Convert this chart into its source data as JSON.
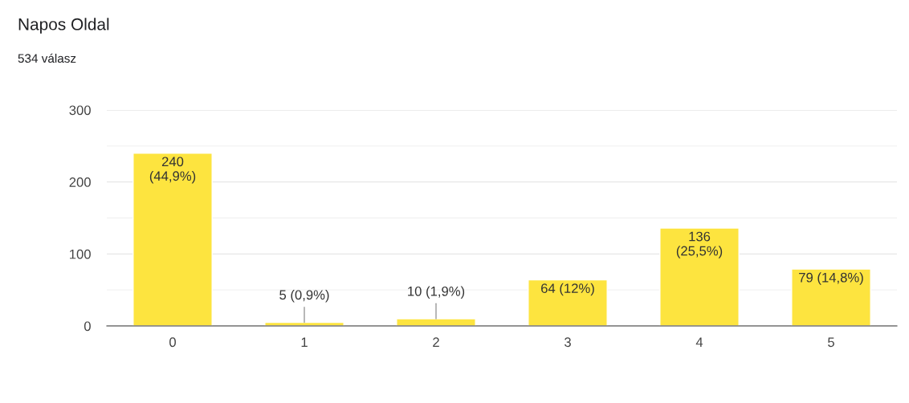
{
  "chart_data": {
    "type": "bar",
    "title": "Napos Oldal",
    "subtitle": "534 válasz",
    "categories": [
      "0",
      "1",
      "2",
      "3",
      "4",
      "5"
    ],
    "values": [
      240,
      5,
      10,
      64,
      136,
      79
    ],
    "value_labels": [
      "240\n(44,9%)",
      "5 (0,9%)",
      "10 (1,9%)",
      "64 (12%)",
      "136\n(25,5%)",
      "79 (14,8%)"
    ],
    "color": "#fde43f",
    "ylim": [
      0,
      300
    ],
    "yticks": [
      0,
      {
        "value": 50,
        "label": null
      },
      100,
      {
        "value": 150,
        "label": null
      },
      200,
      {
        "value": 250,
        "label": null
      },
      300
    ],
    "grid": "y"
  }
}
